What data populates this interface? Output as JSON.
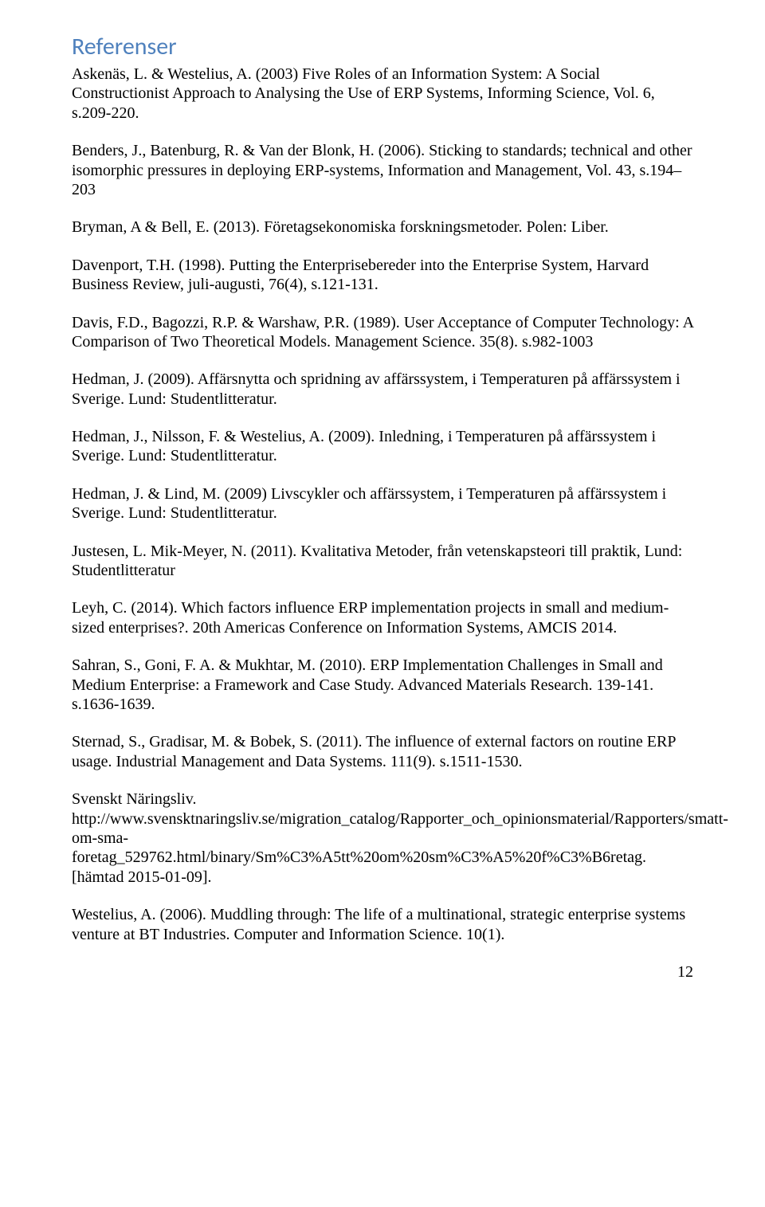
{
  "heading": "Referenser",
  "refs": [
    "Askenäs, L. & Westelius, A. (2003) Five Roles of an Information System: A Social Constructionist Approach to Analysing the Use of ERP Systems, Informing Science, Vol. 6, s.209-220.",
    "Benders, J., Batenburg, R. & Van der Blonk, H. (2006). Sticking to standards; technical and other isomorphic pressures in deploying ERP-systems, Information and Management, Vol. 43, s.194–203",
    "Bryman, A & Bell, E. (2013). Företagsekonomiska forskningsmetoder. Polen: Liber.",
    "Davenport, T.H. (1998). Putting the Enterprisebereder into the Enterprise System, Harvard Business Review, juli-augusti, 76(4), s.121-131.",
    "Davis, F.D., Bagozzi, R.P. & Warshaw, P.R. (1989). User Acceptance of Computer Technology: A Comparison of Two Theoretical Models. Management Science. 35(8). s.982-1003",
    "Hedman, J. (2009). Affärsnytta och spridning av affärssystem, i Temperaturen på affärssystem i Sverige. Lund: Studentlitteratur.",
    "Hedman, J., Nilsson, F. & Westelius, A. (2009). Inledning, i Temperaturen på affärssystem i Sverige. Lund: Studentlitteratur.",
    "Hedman, J. & Lind, M. (2009) Livscykler och affärssystem, i Temperaturen på affärssystem i Sverige. Lund: Studentlitteratur.",
    "Justesen, L. Mik-Meyer, N. (2011). Kvalitativa Metoder, från vetenskapsteori till praktik, Lund: Studentlitteratur",
    "Leyh, C. (2014). Which factors influence ERP implementation projects in small and medium-sized enterprises?. 20th Americas Conference on Information Systems, AMCIS 2014.",
    "Sahran, S., Goni, F. A. & Mukhtar, M. (2010). ERP Implementation Challenges in Small and Medium Enterprise: a Framework and Case Study. Advanced Materials Research. 139-141. s.1636-1639.",
    "Sternad, S., Gradisar, M. & Bobek, S. (2011). The influence of external factors on routine ERP usage. Industrial Management and Data Systems. 111(9). s.1511-1530.",
    "Svenskt Näringsliv. http://www.svensktnaringsliv.se/migration_catalog/Rapporter_och_opinionsmaterial/Rapporters/smatt-om-sma-foretag_529762.html/binary/Sm%C3%A5tt%20om%20sm%C3%A5%20f%C3%B6retag. [hämtad 2015-01-09].",
    "Westelius, A. (2006). Muddling through: The life of a multinational, strategic enterprise systems venture at BT Industries. Computer and Information Science. 10(1)."
  ],
  "pageNumber": "12"
}
